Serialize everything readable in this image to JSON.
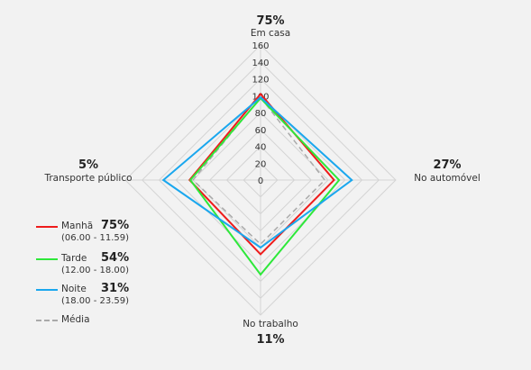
{
  "chart_data": {
    "type": "radar",
    "axes": [
      {
        "label": "Em casa",
        "pct": "75%"
      },
      {
        "label": "No automóvel",
        "pct": "27%"
      },
      {
        "label": "No trabalho",
        "pct": "11%"
      },
      {
        "label": "Transporte público",
        "pct": "5%"
      }
    ],
    "rmax": 160,
    "ticks": [
      "0",
      "20",
      "40",
      "60",
      "80",
      "100",
      "120",
      "140",
      "160"
    ],
    "series": [
      {
        "name": "Manhã",
        "range": "(06.00 - 11.59)",
        "pct": "75%",
        "color": "#ee1c1c",
        "dashed": false,
        "values": [
          102,
          87,
          88,
          84
        ]
      },
      {
        "name": "Tarde",
        "range": "(12.00 - 18.00)",
        "pct": "54%",
        "color": "#2ee83a",
        "dashed": false,
        "values": [
          97,
          93,
          112,
          83
        ]
      },
      {
        "name": "Noite",
        "range": "(18.00 - 23.59)",
        "pct": "31%",
        "color": "#1aa7ee",
        "dashed": false,
        "values": [
          98,
          108,
          80,
          115
        ]
      },
      {
        "name": "Média",
        "range": "",
        "pct": "",
        "color": "#aaaaaa",
        "dashed": true,
        "values": [
          98,
          76,
          76,
          80
        ]
      }
    ]
  }
}
